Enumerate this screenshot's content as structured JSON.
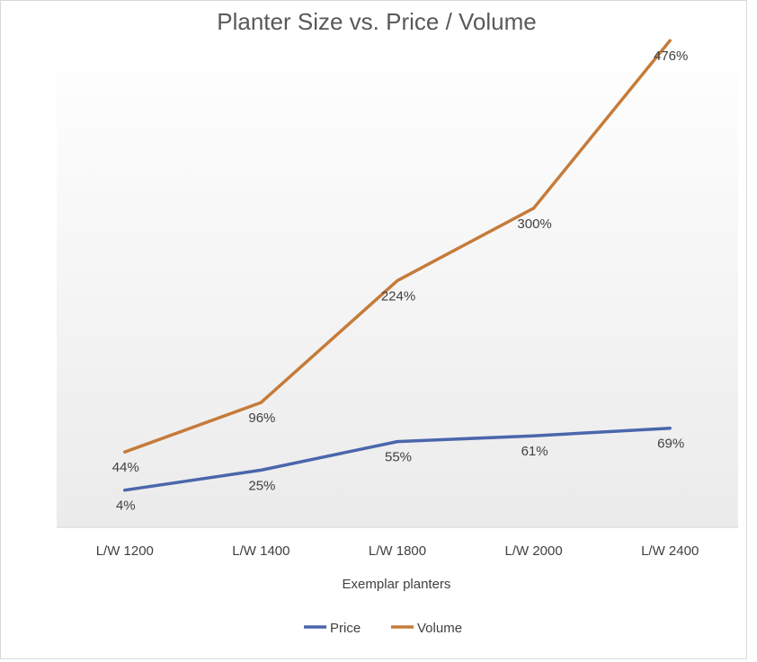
{
  "chart_data": {
    "type": "line",
    "title": "Planter Size vs. Price / Volume",
    "xlabel": "Exemplar planters",
    "ylabel": "",
    "categories": [
      "L/W 1200",
      "L/W 1400",
      "L/W 1800",
      "L/W 2000",
      "L/W 2400"
    ],
    "series": [
      {
        "name": "Price",
        "values": [
          4,
          25,
          55,
          61,
          69
        ],
        "labels": [
          "4%",
          "25%",
          "55%",
          "61%",
          "69%"
        ],
        "color": "#4a66ac"
      },
      {
        "name": "Volume",
        "values": [
          44,
          96,
          224,
          300,
          476
        ],
        "labels": [
          "44%",
          "96%",
          "224%",
          "300%",
          "476%"
        ],
        "color": "#c67b3a"
      }
    ],
    "ylim": [
      -35,
      480
    ],
    "grid": false,
    "legend": "bottom",
    "plot_background": "light gray vertical gradient"
  }
}
